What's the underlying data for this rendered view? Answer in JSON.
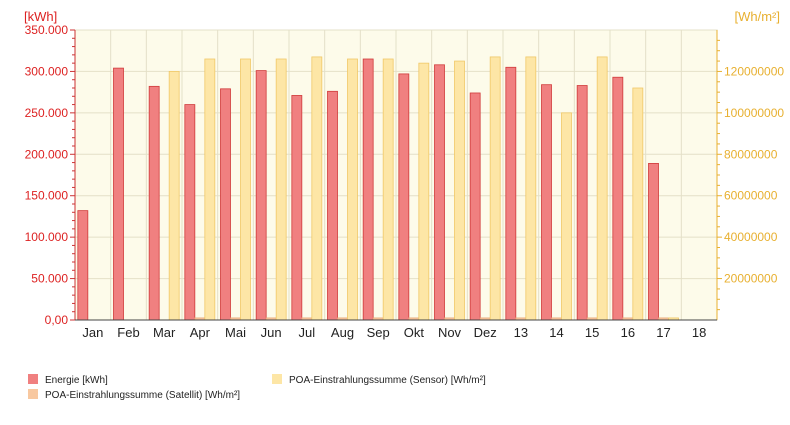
{
  "chart_data": {
    "type": "bar",
    "categories": [
      "Jan",
      "Feb",
      "Mar",
      "Apr",
      "Mai",
      "Jun",
      "Jul",
      "Aug",
      "Sep",
      "Okt",
      "Nov",
      "Dez",
      "13",
      "14",
      "15",
      "16",
      "17",
      "18"
    ],
    "y_left": {
      "unit_label": "[kWh]",
      "ylim": [
        0,
        350000
      ],
      "ticks": [
        "0,00",
        "50.000",
        "100.000",
        "150.000",
        "200.000",
        "250.000",
        "300.000",
        "350.000"
      ],
      "color": "#dd2222"
    },
    "y_right": {
      "unit_label": "[Wh/m²]",
      "ylim": [
        0,
        140000000
      ],
      "ticks": [
        "20000000",
        "40000000",
        "60000000",
        "80000000",
        "100000000",
        "120000000"
      ],
      "color": "#e8b030"
    },
    "series": [
      {
        "name": "Energie [kWh]",
        "axis": "left",
        "color": "#f08080",
        "stroke": "#d03a3a",
        "values": [
          132000,
          304000,
          282000,
          260000,
          279000,
          301000,
          271000,
          276000,
          315000,
          297000,
          308000,
          274000,
          305000,
          284000,
          283000,
          293000,
          189000,
          null
        ]
      },
      {
        "name": "POA-Einstrahlungssumme (Satellit) [Wh/m²]",
        "axis": "right",
        "color": "#f8c8a0",
        "stroke": "#e8a878",
        "values": [
          null,
          null,
          null,
          1000000,
          1000000,
          1000000,
          1000000,
          1000000,
          1000000,
          1000000,
          1000000,
          1000000,
          1000000,
          1000000,
          1000000,
          1000000,
          1000000,
          null
        ]
      },
      {
        "name": "POA-Einstrahlungssumme (Sensor) [Wh/m²]",
        "axis": "right",
        "color": "#fde6a6",
        "stroke": "#f0c868",
        "values": [
          null,
          null,
          120000000,
          126000000,
          126000000,
          126000000,
          127000000,
          126000000,
          126000000,
          124000000,
          125000000,
          127000000,
          127000000,
          100000000,
          127000000,
          112000000,
          1000000,
          null
        ]
      }
    ],
    "legend": {
      "placement": "bottom-left",
      "items": [
        {
          "label": "Energie [kWh]",
          "color": "#f08080"
        },
        {
          "label": "POA-Einstrahlungssumme (Satellit) [Wh/m²]",
          "color": "#f8c8a0"
        },
        {
          "label": "POA-Einstrahlungssumme (Sensor) [Wh/m²]",
          "color": "#fde6a6"
        }
      ]
    },
    "plot_background": "#fdfbea",
    "grid": true
  }
}
